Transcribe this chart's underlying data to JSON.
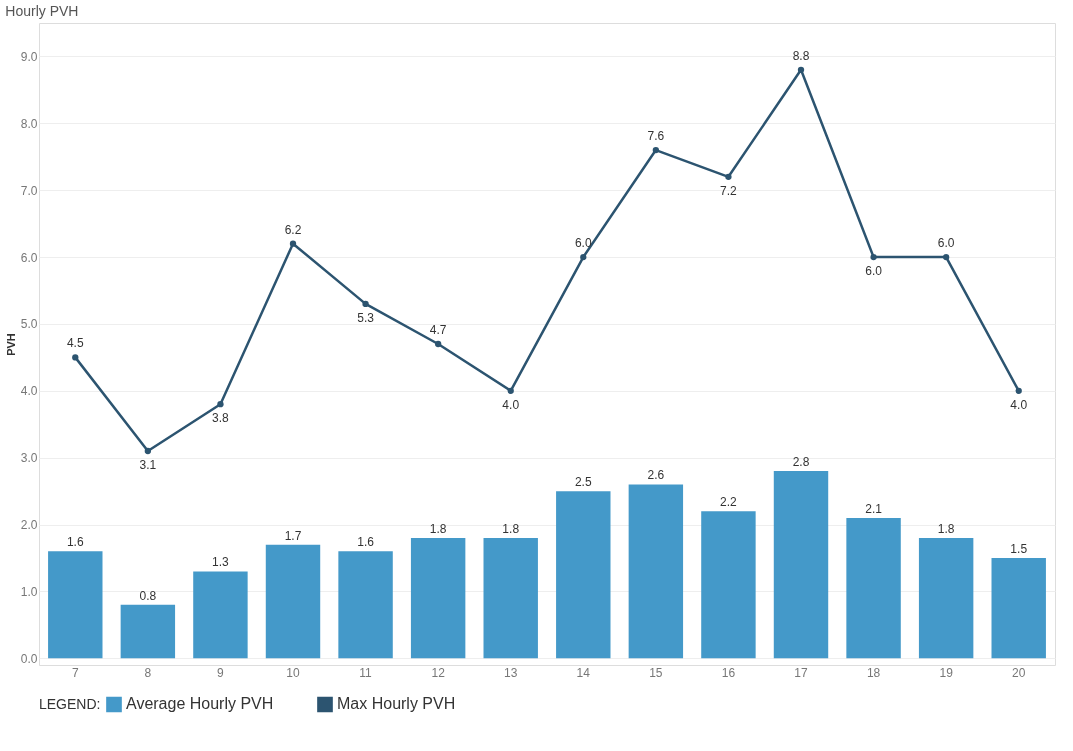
{
  "chart_data": {
    "type": "bar",
    "title": "Hourly PVH",
    "ylabel": "PVH",
    "legend_title": "LEGEND:",
    "categories": [
      "7",
      "8",
      "9",
      "10",
      "11",
      "12",
      "13",
      "14",
      "15",
      "16",
      "17",
      "18",
      "19",
      "20"
    ],
    "series": [
      {
        "name": "Average Hourly PVH",
        "color": "#4499c9",
        "values": [
          1.6,
          0.8,
          1.3,
          1.7,
          1.6,
          1.8,
          1.8,
          2.5,
          2.6,
          2.2,
          2.8,
          2.1,
          1.8,
          1.5
        ],
        "value_labels": [
          "1.6",
          "0.8",
          "1.3",
          "1.7",
          "1.6",
          "1.8",
          "1.8",
          "2.5",
          "2.6",
          "2.2",
          "2.8",
          "2.1",
          "1.8",
          "1.5"
        ]
      },
      {
        "name": "Max Hourly PVH",
        "type": "line",
        "color": "#2c5470",
        "values": [
          4.5,
          3.1,
          3.8,
          6.2,
          5.3,
          4.7,
          4.0,
          6.0,
          7.6,
          7.2,
          8.8,
          6.0,
          6.0,
          4.0
        ],
        "value_labels": [
          "4.5",
          "3.1",
          "3.8",
          "6.2",
          "5.3",
          "4.7",
          "4.0",
          "6.0",
          "7.6",
          "7.2",
          "8.8",
          "6.0",
          "6.0",
          "4.0"
        ]
      }
    ],
    "ylim": [
      -0.1,
      9.5
    ],
    "yticks": [
      {
        "value": 0,
        "label": "0.0"
      },
      {
        "value": 1,
        "label": "1.0"
      },
      {
        "value": 2,
        "label": "2.0"
      },
      {
        "value": 3,
        "label": "3.0"
      },
      {
        "value": 4,
        "label": "4.0"
      },
      {
        "value": 5,
        "label": "5.0"
      },
      {
        "value": 6,
        "label": "6.0"
      },
      {
        "value": 7,
        "label": "7.0"
      },
      {
        "value": 8,
        "label": "8.0"
      },
      {
        "value": 9,
        "label": "9.0"
      }
    ],
    "grid": "y",
    "legend": "bottom",
    "marker": "circle",
    "line_style": "solid"
  }
}
